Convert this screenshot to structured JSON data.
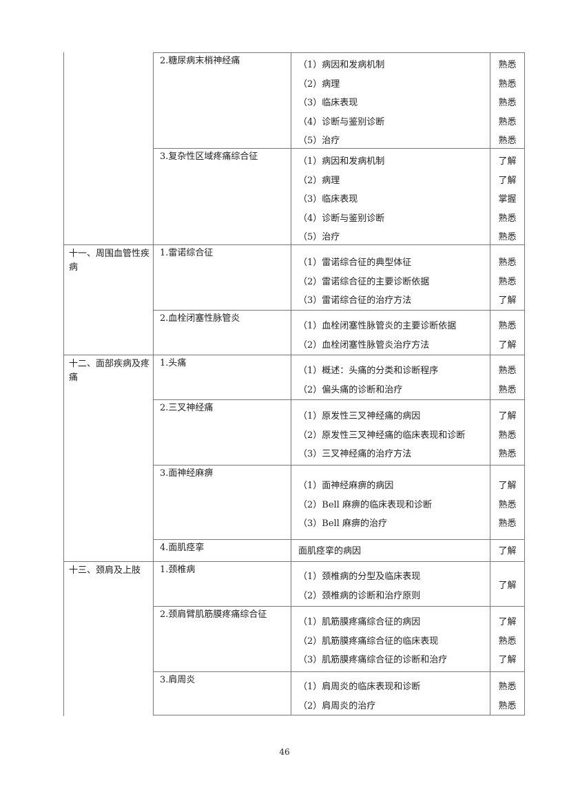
{
  "sections": [
    {
      "title": "",
      "groups": [
        {
          "topic": "2.糖尿病末梢神经痛",
          "items": [
            {
              "text": "（1）病因和发病机制",
              "level": "熟悉"
            },
            {
              "text": "（2）病理",
              "level": "熟悉"
            },
            {
              "text": "（3）临床表现",
              "level": "熟悉"
            },
            {
              "text": "（4）诊断与鉴别诊断",
              "level": "熟悉"
            },
            {
              "text": "（5）治疗",
              "level": "熟悉"
            }
          ]
        },
        {
          "topic": "3.复杂性区域疼痛综合征",
          "items": [
            {
              "text": "（1）病因和发病机制",
              "level": "了解"
            },
            {
              "text": "（2）病理",
              "level": "了解"
            },
            {
              "text": "（3）临床表现",
              "level": "掌握"
            },
            {
              "text": "（4）诊断与鉴别诊断",
              "level": "熟悉"
            },
            {
              "text": "（5）治疗",
              "level": "熟悉"
            }
          ]
        }
      ]
    },
    {
      "title": "十一、周围血管性疾病",
      "groups": [
        {
          "topic": "1.雷诺综合征",
          "items": [
            {
              "text": "（1）雷诺综合征的典型体征",
              "level": "熟悉"
            },
            {
              "text": "（2）雷诺综合征的主要诊断依据",
              "level": "熟悉"
            },
            {
              "text": "（3）雷诺综合征的治疗方法",
              "level": "了解"
            }
          ]
        },
        {
          "topic": "2.血栓闭塞性脉管炎",
          "items": [
            {
              "text": "（1）血栓闭塞性脉管炎的主要诊断依据",
              "level": "熟悉"
            },
            {
              "text": "（2）血栓闭塞性脉管炎治疗方法",
              "level": "了解"
            }
          ]
        }
      ]
    },
    {
      "title": "十二、面部疾病及疼痛",
      "groups": [
        {
          "topic": "1.头痛",
          "items": [
            {
              "text": "（1）概述：头痛的分类和诊断程序",
              "level": "熟悉"
            },
            {
              "text": "（2）偏头痛的诊断和治疗",
              "level": "熟悉"
            }
          ]
        },
        {
          "topic": "2.三叉神经痛",
          "items": [
            {
              "text": "（1）原发性三叉神经痛的病因",
              "level": "了解"
            },
            {
              "text": "（2）原发性三叉神经痛的临床表现和诊断",
              "level": "熟悉"
            },
            {
              "text": "（3）三叉神经痛的治疗方法",
              "level": "熟悉"
            }
          ]
        },
        {
          "topic": "3.面神经麻痹",
          "items": [
            {
              "text": "（1）面神经麻痹的病因",
              "level": "了解"
            },
            {
              "text": "（2）Bell 麻痹的临床表现和诊断",
              "level": "熟悉"
            },
            {
              "text": "（3）Bell 麻痹的治疗",
              "level": "熟悉"
            }
          ]
        },
        {
          "topic": "4.面肌痉挛",
          "items": [
            {
              "text": "面肌痉挛的病因",
              "level": "了解"
            }
          ]
        }
      ]
    },
    {
      "title": "十三、颈肩及上肢",
      "groups": [
        {
          "topic": "1.颈椎病",
          "items": [
            {
              "text": "（1）颈椎病的分型及临床表现",
              "level": ""
            },
            {
              "text": "（2）颈椎病的诊断和治疗原则",
              "level": ""
            }
          ],
          "level": "了解"
        },
        {
          "topic": "2.颈肩臂肌筋膜疼痛综合征",
          "items": [
            {
              "text": "（1）肌筋膜疼痛综合征的病因",
              "level": "了解"
            },
            {
              "text": "（2）肌筋膜疼痛综合征的临床表现",
              "level": "熟悉"
            },
            {
              "text": "（3）肌筋膜疼痛综合征的诊断和治疗",
              "level": "了解"
            }
          ]
        },
        {
          "topic": "3.肩周炎",
          "items": [
            {
              "text": "（1）肩周炎的临床表现和诊断",
              "level": "熟悉"
            },
            {
              "text": "（2）肩周炎的治疗",
              "level": "熟悉"
            }
          ]
        }
      ]
    }
  ],
  "page_number": "46"
}
